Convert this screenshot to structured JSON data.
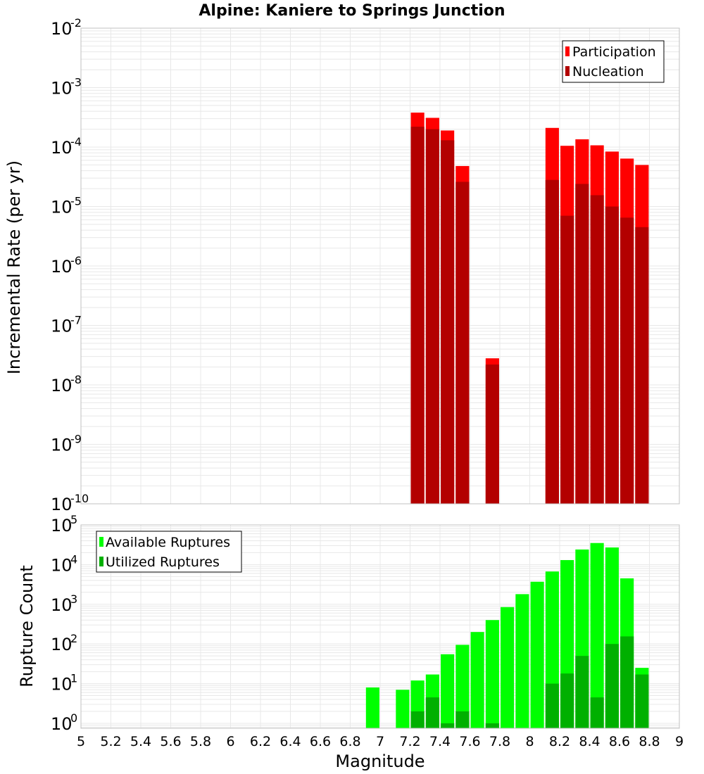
{
  "chart_data": [
    {
      "type": "bar",
      "title": "Alpine: Kaniere to Springs Junction",
      "xlabel": "",
      "ylabel": "Incremental Rate (per yr)",
      "yscale": "log",
      "ylim": [
        1e-10,
        0.01
      ],
      "xlim": [
        5,
        9
      ],
      "legend_position": "top-right",
      "series": [
        {
          "name": "Participation",
          "color": "#ff0000",
          "x": [
            7.25,
            7.35,
            7.45,
            7.55,
            7.75,
            8.15,
            8.25,
            8.35,
            8.45,
            8.55,
            8.65,
            8.75
          ],
          "values": [
            0.00038,
            0.00031,
            0.00019,
            4.8e-05,
            2.8e-08,
            0.00021,
            0.000105,
            0.000135,
            0.000107,
            8.4e-05,
            6.4e-05,
            5e-05
          ]
        },
        {
          "name": "Nucleation",
          "color": "#b30000",
          "x": [
            7.25,
            7.35,
            7.45,
            7.55,
            7.75,
            8.15,
            8.25,
            8.35,
            8.45,
            8.55,
            8.65,
            8.75
          ],
          "values": [
            0.00022,
            0.0002,
            0.00013,
            2.6e-05,
            2.2e-08,
            2.8e-05,
            7e-06,
            2.4e-05,
            1.55e-05,
            1e-05,
            6.5e-06,
            4.5e-06
          ]
        }
      ]
    },
    {
      "type": "bar",
      "title": "",
      "xlabel": "Magnitude",
      "ylabel": "Rupture Count",
      "yscale": "log",
      "ylim": [
        0.75,
        100000.0
      ],
      "xlim": [
        5,
        9
      ],
      "x_ticks": [
        "5",
        "5.2",
        "5.4",
        "5.6",
        "5.8",
        "6",
        "6.2",
        "6.4",
        "6.6",
        "6.8",
        "7",
        "7.2",
        "7.4",
        "7.6",
        "7.8",
        "8",
        "8.2",
        "8.4",
        "8.6",
        "8.8",
        "9"
      ],
      "legend_position": "top-left",
      "series": [
        {
          "name": "Available Ruptures",
          "color": "#00ff00",
          "x": [
            6.95,
            7.15,
            7.25,
            7.35,
            7.45,
            7.55,
            7.65,
            7.75,
            7.85,
            7.95,
            8.05,
            8.15,
            8.25,
            8.35,
            8.45,
            8.55,
            8.65,
            8.75
          ],
          "values": [
            8,
            7,
            12,
            17,
            55,
            95,
            200,
            400,
            850,
            1800,
            3700,
            6700,
            13000,
            24000,
            35000,
            27000,
            4500,
            25
          ]
        },
        {
          "name": "Utilized Ruptures",
          "color": "#00b000",
          "x": [
            7.25,
            7.35,
            7.45,
            7.55,
            7.75,
            8.15,
            8.25,
            8.35,
            8.45,
            8.55,
            8.65,
            8.75
          ],
          "values": [
            2,
            4.5,
            1,
            2,
            1,
            10,
            18,
            50,
            4.5,
            100,
            155,
            17
          ]
        }
      ]
    }
  ]
}
